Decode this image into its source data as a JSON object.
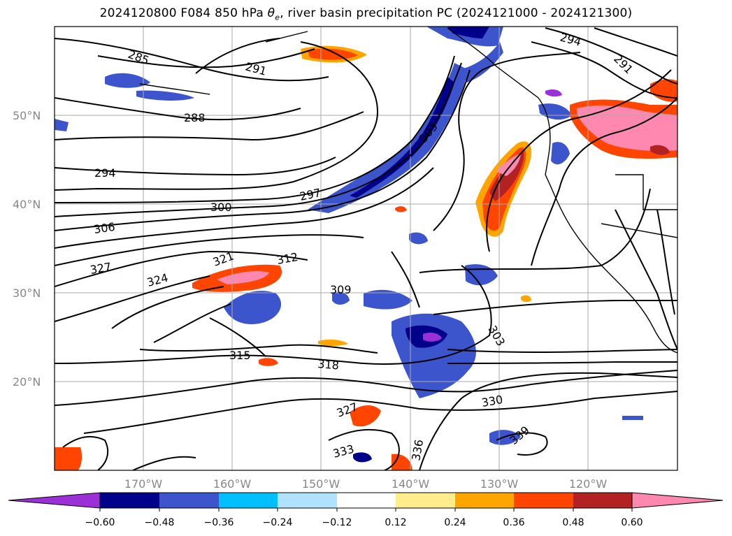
{
  "title": {
    "run": "2024120800",
    "forecast": "F084",
    "level": "850 hPa",
    "variable_symbol": "θ",
    "variable_subscript": "e",
    "description": ", river basin precipitation PC (2024121000 - 2024121300)"
  },
  "map": {
    "lat_labels": [
      "50°N",
      "40°N",
      "30°N",
      "20°N"
    ],
    "lon_labels": [
      "170°W",
      "160°W",
      "150°W",
      "140°W",
      "130°W",
      "120°W"
    ],
    "contour_labels": [
      "285",
      "291",
      "288",
      "294",
      "297",
      "300",
      "303",
      "306",
      "312",
      "321",
      "327",
      "324",
      "309",
      "303",
      "315",
      "318",
      "330",
      "327",
      "333",
      "336",
      "339",
      "294",
      "291"
    ],
    "grid": true
  },
  "colorbar": {
    "ticks": [
      "−0.60",
      "−0.48",
      "−0.36",
      "−0.24",
      "−0.12",
      "0.12",
      "0.24",
      "0.36",
      "0.48",
      "0.60"
    ],
    "colors": [
      "#9b30d9",
      "#00008b",
      "#3c55cd",
      "#00bfff",
      "#b0e2ff",
      "#ffffff",
      "#ffec8b",
      "#ffa500",
      "#ff4500",
      "#b22222",
      "#ff88b0",
      "#ff88b0"
    ],
    "extend_min_color": "#9b30d9",
    "extend_max_color": "#ff88b0"
  }
}
